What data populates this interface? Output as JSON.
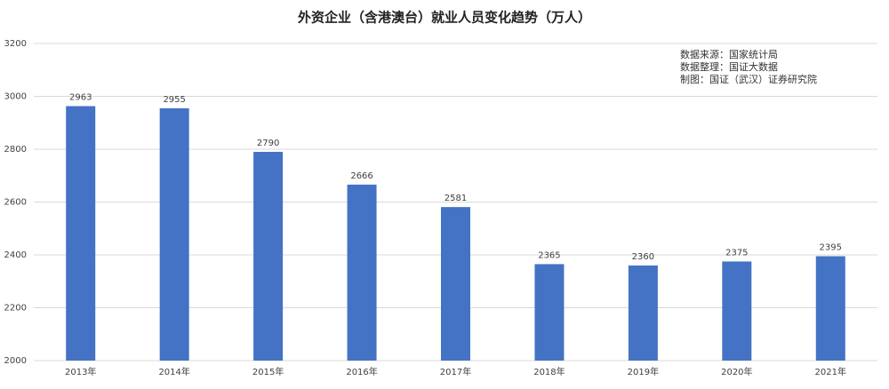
{
  "chart_data": {
    "type": "bar",
    "title": "外资企业（含港澳台）就业人员变化趋势（万人）",
    "annotations": [
      "数据来源：国家统计局",
      "数据整理：国证大数据",
      "制图：国证（武汉）证券研究院"
    ],
    "categories": [
      "2013年",
      "2014年",
      "2015年",
      "2016年",
      "2017年",
      "2018年",
      "2019年",
      "2020年",
      "2021年"
    ],
    "values": [
      2963,
      2955,
      2790,
      2666,
      2581,
      2365,
      2360,
      2375,
      2395
    ],
    "color": "#4472c4",
    "ylim": [
      2000,
      3200
    ],
    "yticks": [
      2000,
      2200,
      2400,
      2600,
      2800,
      3000,
      3200
    ],
    "grid": true
  }
}
